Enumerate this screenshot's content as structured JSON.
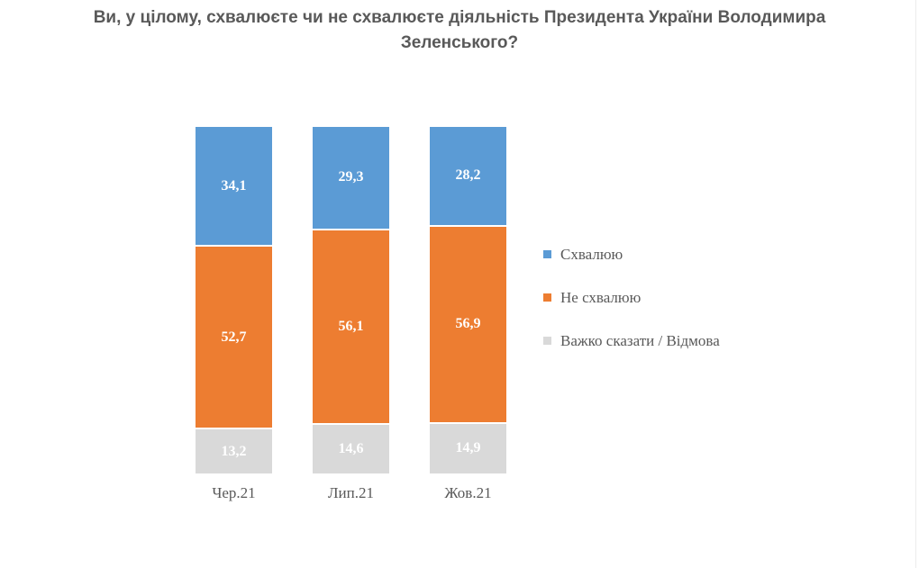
{
  "title": {
    "lines": [
      "Ви, у цілому, схвалюєте чи не схвалюєте діяльність Президента України Володимира",
      "Зеленського?"
    ]
  },
  "chart_data": {
    "type": "bar",
    "subtype": "stacked-100-percent-column",
    "title": "Ви, у цілому, схвалюєте чи не схвалюєте діяльність Президента України Володимира Зеленського?",
    "categories": [
      "Чер.21",
      "Лип.21",
      "Жов.21"
    ],
    "series": [
      {
        "name": "Схвалюю",
        "color": "#5B9BD5",
        "values": [
          34.1,
          29.3,
          28.2
        ],
        "labels": [
          "34,1",
          "29,3",
          "28,2"
        ]
      },
      {
        "name": "Не схвалюю",
        "color": "#ED7D31",
        "values": [
          52.7,
          56.1,
          56.9
        ],
        "labels": [
          "52,7",
          "56,1",
          "56,9"
        ]
      },
      {
        "name": "Важко сказати / Відмова",
        "color": "#D9D9D9",
        "values": [
          13.2,
          14.6,
          14.9
        ],
        "labels": [
          "13,2",
          "14,6",
          "14,9"
        ]
      }
    ],
    "ylim": [
      0,
      100
    ],
    "grid": false,
    "legend_position": "right",
    "data_label_color": "#ffffff",
    "axis_text_color": "#595959",
    "title_color": "#595959",
    "decimal_separator": ","
  }
}
